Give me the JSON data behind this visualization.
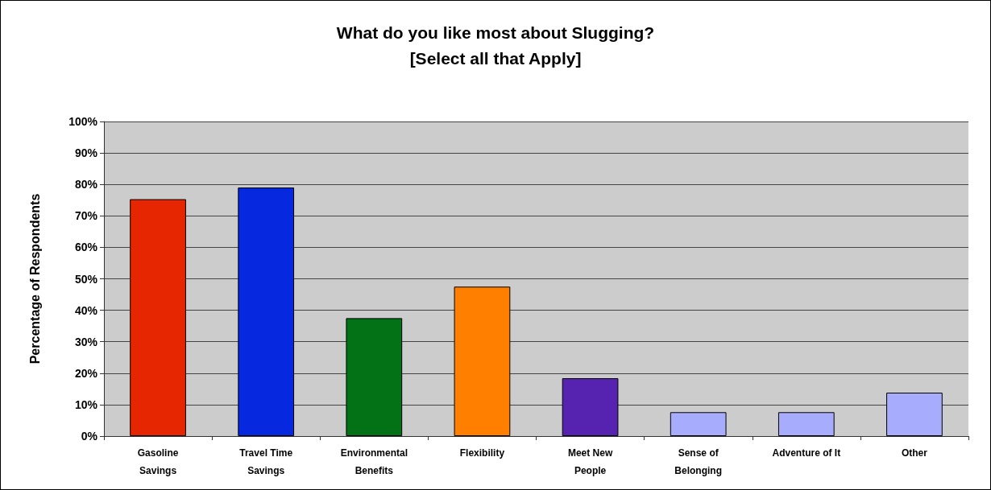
{
  "chart_data": {
    "type": "bar",
    "title": "What do you like most about Slugging?\n[Select all that Apply]",
    "ylabel": "Percentage of Respondents",
    "categories": [
      "Gasoline\nSavings",
      "Travel Time\nSavings",
      "Environmental\nBenefits",
      "Flexibility",
      "Meet New\nPeople",
      "Sense of\nBelonging",
      "Adventure of It",
      "Other"
    ],
    "values": [
      75.3,
      79,
      37.5,
      47.5,
      18.4,
      7.6,
      7.6,
      13.8
    ],
    "colors": [
      "#e52600",
      "#0628de",
      "#037116",
      "#ff7f00",
      "#5523b0",
      "#a8acfc",
      "#a8acfc",
      "#a8acfc"
    ],
    "ylim": [
      0,
      100
    ],
    "yticks": [
      {
        "value": 0,
        "label": "0%"
      },
      {
        "value": 10,
        "label": "10%"
      },
      {
        "value": 20,
        "label": "20%"
      },
      {
        "value": 30,
        "label": "30%"
      },
      {
        "value": 40,
        "label": "40%"
      },
      {
        "value": 50,
        "label": "50%"
      },
      {
        "value": 60,
        "label": "60%"
      },
      {
        "value": 70,
        "label": "70%"
      },
      {
        "value": 80,
        "label": "80%"
      },
      {
        "value": 90,
        "label": "90%"
      },
      {
        "value": 100,
        "label": "100%"
      }
    ],
    "grid": "y"
  }
}
